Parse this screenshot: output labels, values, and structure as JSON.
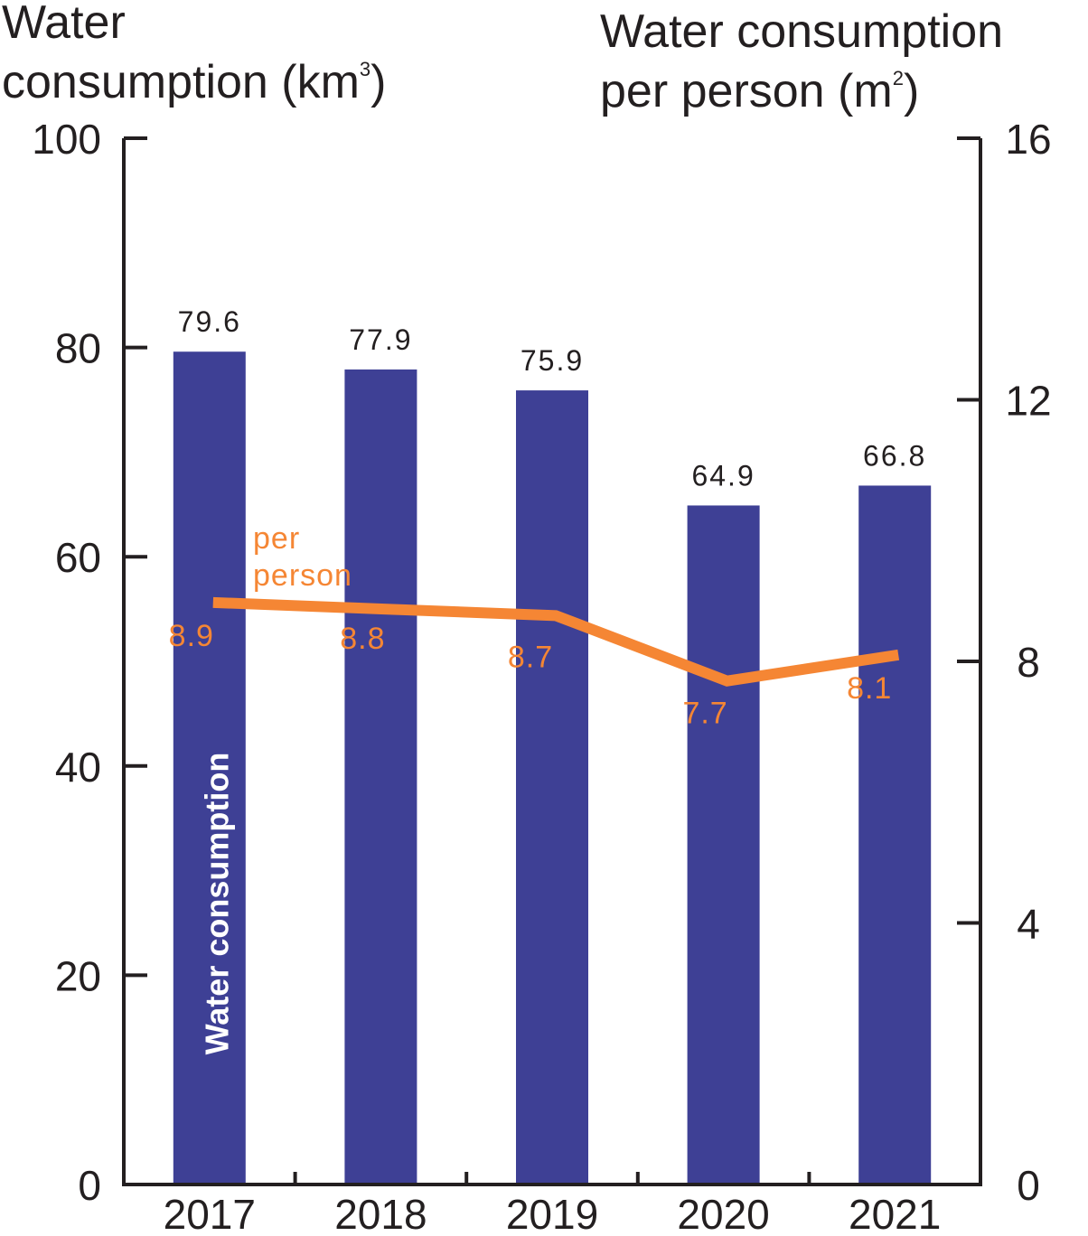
{
  "chart_data": {
    "type": "bar",
    "categories": [
      "2017",
      "2018",
      "2019",
      "2020",
      "2021"
    ],
    "left_axis": {
      "title_line1": "Water",
      "title_line2": "consumption (km",
      "title_sup": "3",
      "title_end": ")",
      "ylim": [
        0,
        100
      ],
      "ticks": [
        0,
        20,
        40,
        60,
        80,
        100
      ]
    },
    "right_axis": {
      "title_line1": "Water consumption",
      "title_line2": "per person (m",
      "title_sup": "2",
      "title_end": ")",
      "ylim": [
        0,
        16
      ],
      "ticks": [
        0,
        4,
        8,
        12,
        16
      ]
    },
    "series": [
      {
        "name": "Water consumption",
        "type": "bar",
        "axis": "left",
        "values": [
          79.6,
          77.9,
          75.9,
          64.9,
          66.8
        ],
        "labels": [
          "79.6",
          "77.9",
          "75.9",
          "64.9",
          "66.8"
        ],
        "color": "#3e4095"
      },
      {
        "name_line1": "per",
        "name_line2": "person",
        "type": "line",
        "axis": "right",
        "values": [
          8.9,
          8.8,
          8.7,
          7.7,
          8.1
        ],
        "labels": [
          "8.9",
          "8.8",
          "8.7",
          "7.7",
          "8.1"
        ],
        "color": "#f58634"
      }
    ],
    "axis_color": "#231f20",
    "grid": false
  }
}
